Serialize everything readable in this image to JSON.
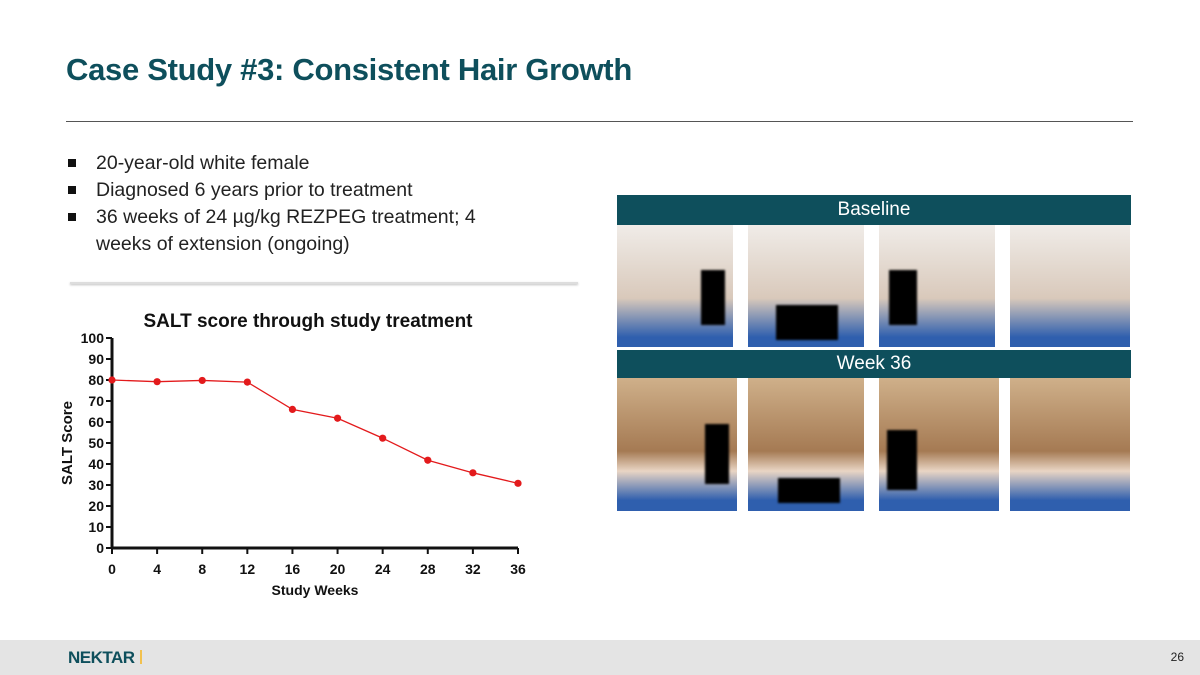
{
  "title": "Case Study #3: Consistent Hair Growth",
  "bullets": [
    "20-year-old white female",
    "Diagnosed 6 years prior to treatment",
    "36 weeks of 24 µg/kg REZPEG treatment; 4 weeks of extension (ongoing)"
  ],
  "photos": {
    "baseline_label": "Baseline",
    "week36_label": "Week 36"
  },
  "footer": {
    "logo": "NEKTAR",
    "page": "26"
  },
  "chart_data": {
    "type": "line",
    "title": "SALT score through study treatment",
    "xlabel": "Study Weeks",
    "ylabel": "SALT Score",
    "x": [
      0,
      4,
      8,
      12,
      16,
      20,
      24,
      28,
      32,
      36
    ],
    "series": [
      {
        "name": "SALT Score",
        "values": [
          80,
          79.2,
          79.8,
          79,
          66,
          61.8,
          52.3,
          41.8,
          35.8,
          30.8
        ],
        "color": "#e31a1c"
      }
    ],
    "xticks": [
      "0",
      "4",
      "8",
      "12",
      "16",
      "20",
      "24",
      "28",
      "32",
      "36"
    ],
    "yticks": [
      "0",
      "10",
      "20",
      "30",
      "40",
      "50",
      "60",
      "70",
      "80",
      "90",
      "100"
    ],
    "xlim": [
      0,
      36
    ],
    "ylim": [
      0,
      100
    ],
    "grid": false
  }
}
